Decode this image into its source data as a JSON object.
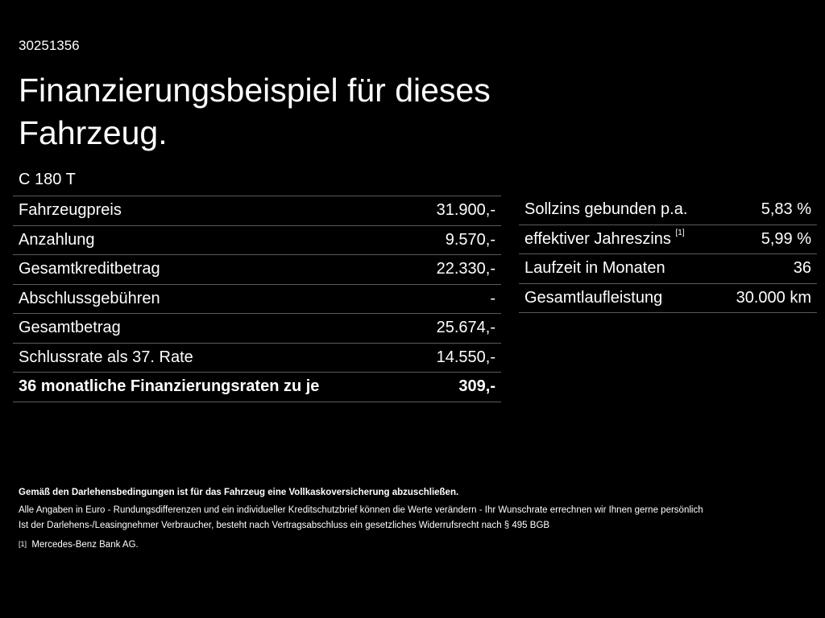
{
  "id": "30251356",
  "title": "Finanzierungsbeispiel für dieses Fahrzeug.",
  "model": "C 180 T",
  "left_rows": [
    {
      "label": "Fahrzeugpreis",
      "value": "31.900,-"
    },
    {
      "label": "Anzahlung",
      "value": "9.570,-"
    },
    {
      "label": "Gesamtkreditbetrag",
      "value": "22.330,-"
    },
    {
      "label": "Abschlussgebühren",
      "value": "-"
    },
    {
      "label": "Gesamtbetrag",
      "value": "25.674,-"
    },
    {
      "label": "Schlussrate als 37. Rate",
      "value": "14.550,-"
    },
    {
      "label": "36 monatliche Finanzierungsraten zu je",
      "value": "309,-"
    }
  ],
  "right_rows": [
    {
      "label": "Sollzins gebunden p.a.",
      "value": "5,83 %"
    },
    {
      "label": "effektiver Jahreszins",
      "sup": "[1]",
      "value": "5,99 %"
    },
    {
      "label": "Laufzeit in Monaten",
      "value": "36"
    },
    {
      "label": "Gesamtlaufleistung",
      "value": "30.000 km"
    }
  ],
  "footer": {
    "bold": "Gemäß den Darlehensbedingungen ist für das Fahrzeug eine Vollkaskoversicherung abzuschließen.",
    "line1": "Alle Angaben in Euro - Rundungsdifferenzen und ein individueller Kreditschutzbrief können die Werte verändern - Ihr Wunschrate errechnen wir Ihnen gerne persönlich",
    "line2": "Ist der Darlehens-/Leasingnehmer Verbraucher, besteht nach Vertragsabschluss ein gesetzliches Widerrufsrecht nach § 495 BGB",
    "note_mark": "[1]",
    "note": "Mercedes-Benz Bank AG."
  }
}
